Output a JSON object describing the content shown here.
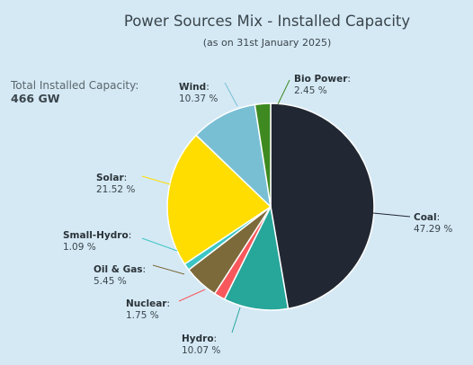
{
  "title": "Power Sources Mix - Installed Capacity",
  "subtitle": "(as on 31st January 2025)",
  "total_label": "Total Installed Capacity:",
  "total_value": "466 GW",
  "chart_data": {
    "type": "pie",
    "title": "Power Sources Mix - Installed Capacity",
    "subtitle": "(as on 31st January 2025)",
    "start": "12 o'clock, clockwise",
    "slices": [
      {
        "name": "Coal",
        "value": 47.29,
        "label": "47.29 %",
        "color": "#212833"
      },
      {
        "name": "Hydro",
        "value": 10.07,
        "label": "10.07 %",
        "color": "#27a69a"
      },
      {
        "name": "Nuclear",
        "value": 1.75,
        "label": "1.75 %",
        "color": "#f8585b"
      },
      {
        "name": "Oil & Gas",
        "value": 5.45,
        "label": "5.45 %",
        "color": "#7d6a3a"
      },
      {
        "name": "Small-Hydro",
        "value": 1.09,
        "label": "1.09 %",
        "color": "#3dc5c5"
      },
      {
        "name": "Solar",
        "value": 21.52,
        "label": "21.52 %",
        "color": "#ffdd00"
      },
      {
        "name": "Wind",
        "value": 10.37,
        "label": "10.37 %",
        "color": "#79bfd4"
      },
      {
        "name": "Bio Power",
        "value": 2.45,
        "label": "2.45 %",
        "color": "#3e8a21"
      }
    ]
  }
}
